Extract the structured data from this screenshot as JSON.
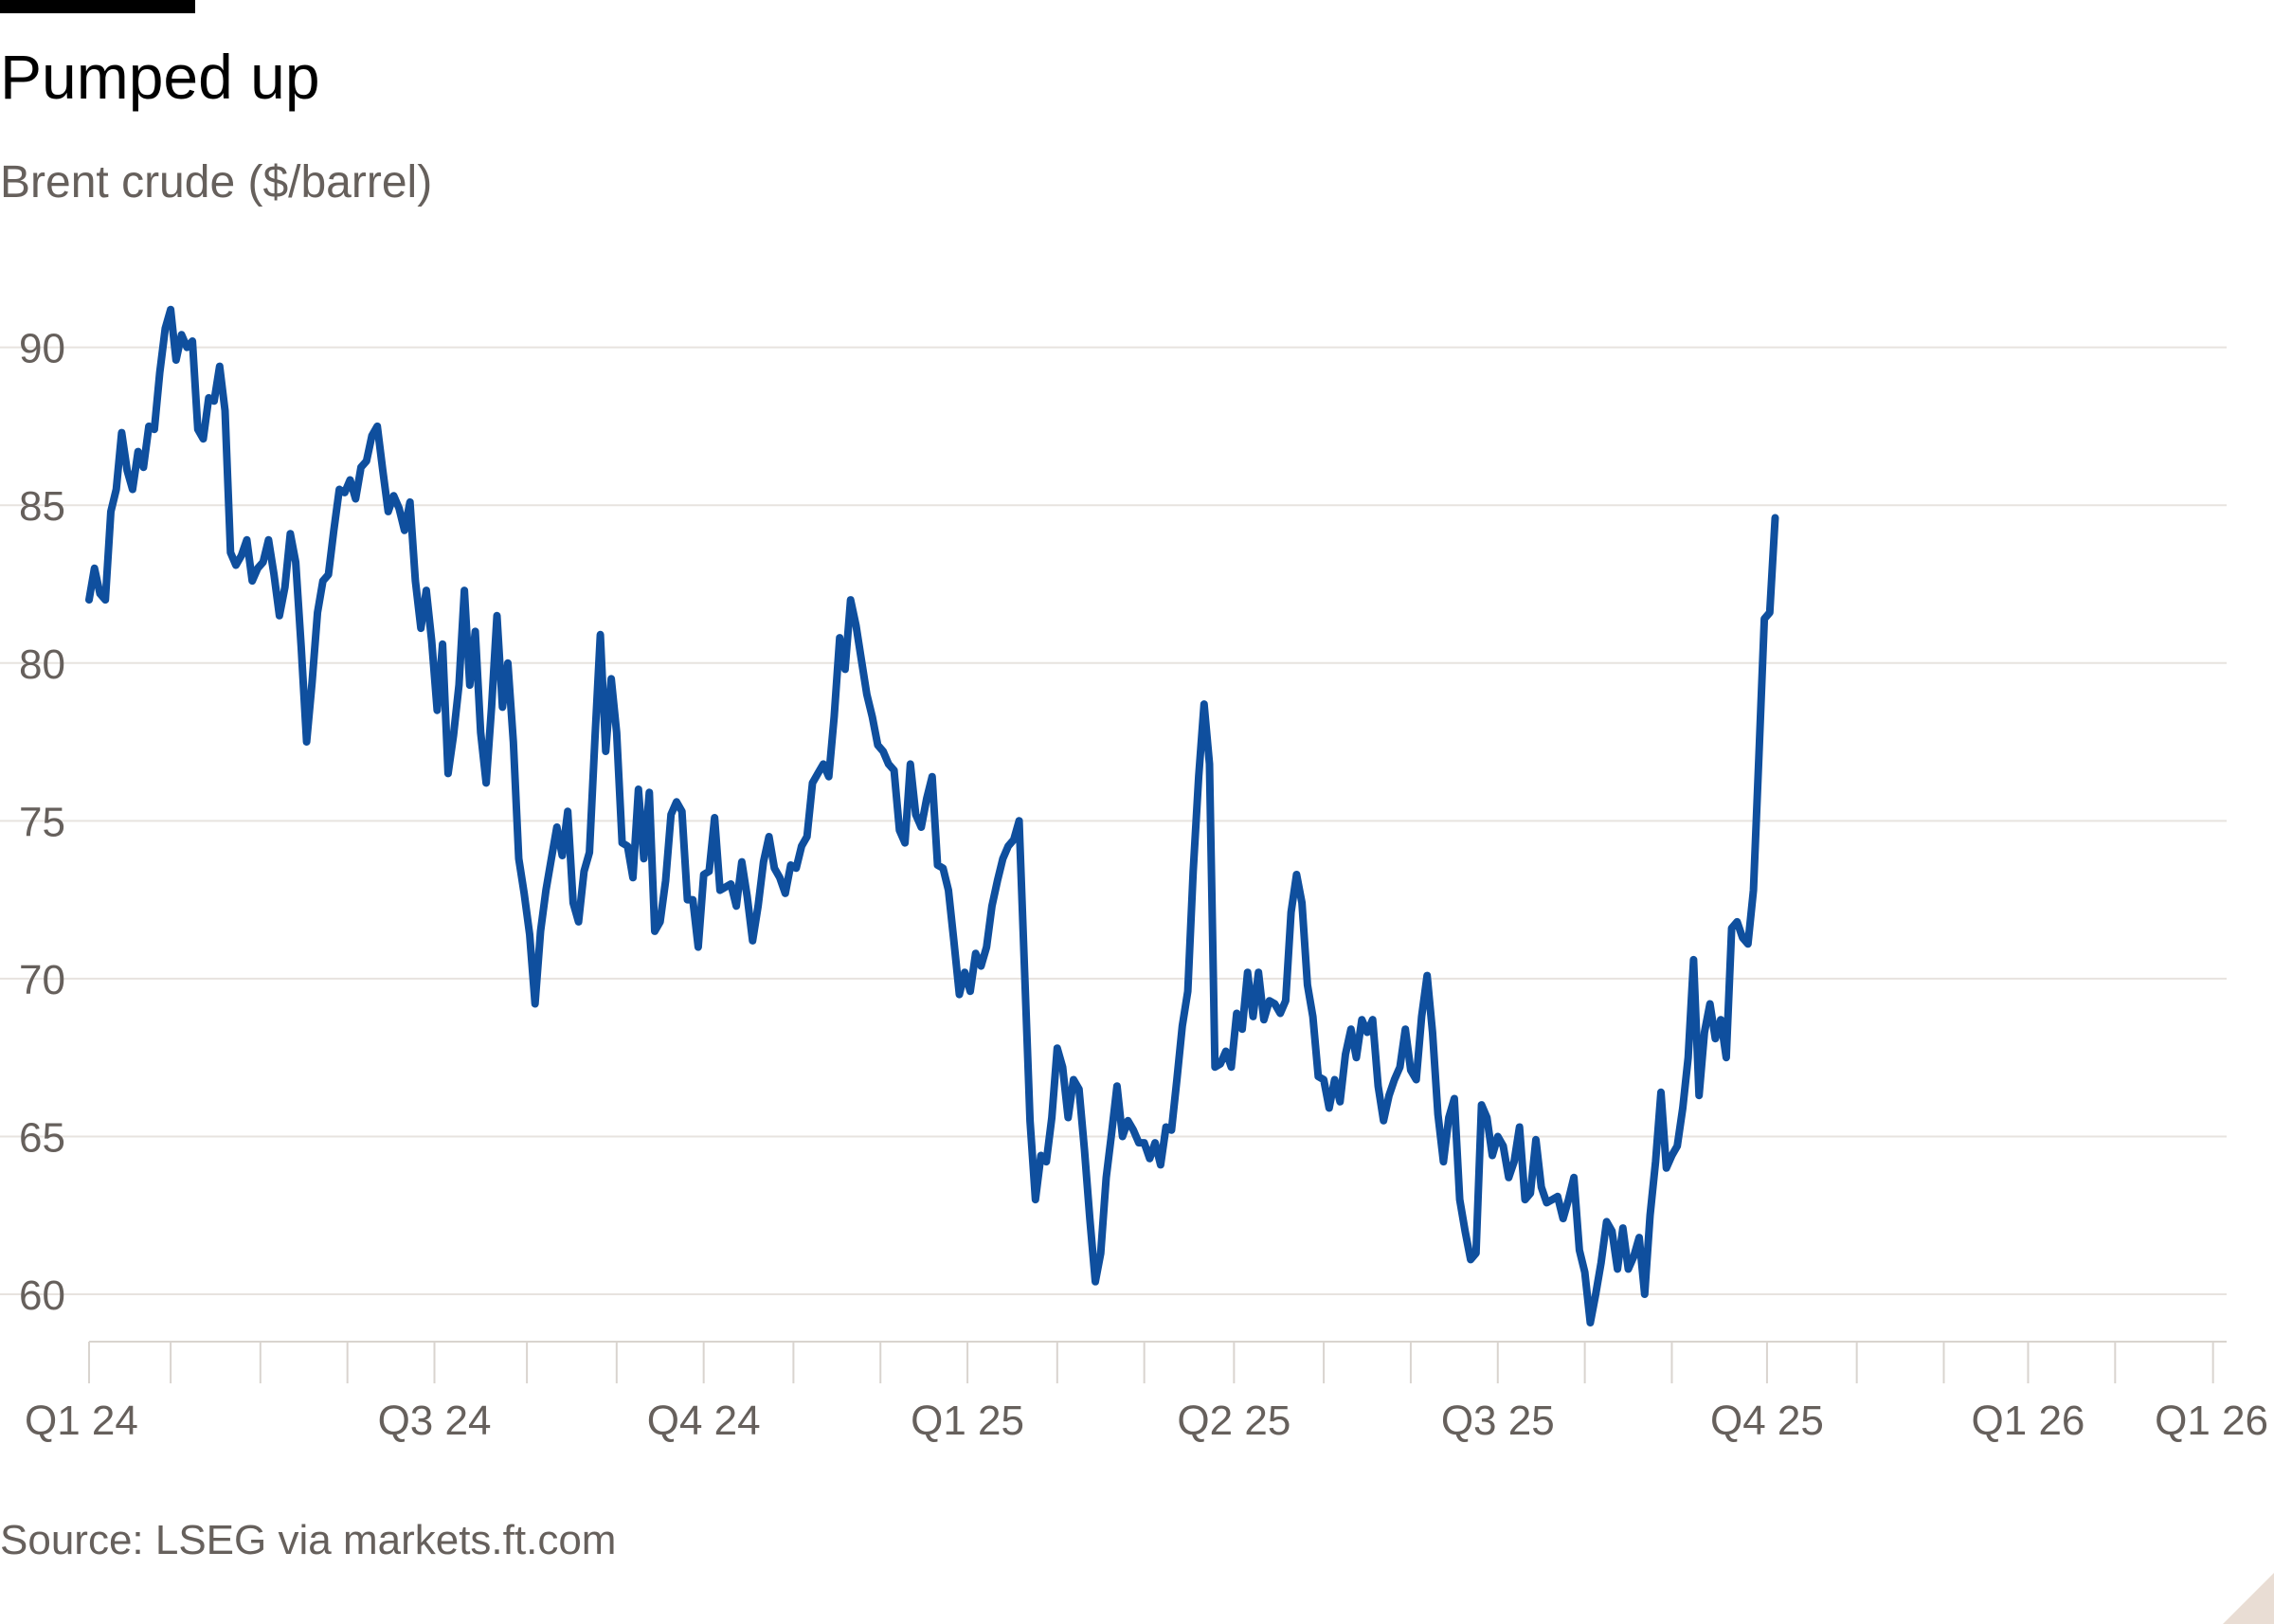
{
  "header": {
    "title": "Pumped up",
    "subtitle": "Brent crude ($/barrel)"
  },
  "footer": {
    "source": "Source: LSEG via markets.ft.com"
  },
  "colors": {
    "line": "#0f4f9e",
    "grid": "#e7e3df",
    "axis": "#d9d4cf",
    "text_muted": "#66605c"
  },
  "chart_data": {
    "type": "line",
    "title": "Pumped up",
    "subtitle": "Brent crude ($/barrel)",
    "xlabel": "",
    "ylabel": "",
    "ylim": [
      58.5,
      92
    ],
    "yticks": [
      60,
      65,
      70,
      75,
      80,
      85,
      90
    ],
    "grid": true,
    "x_domain": [
      0,
      786
    ],
    "x_tick_labels": [
      {
        "x": 0,
        "label": "Q1 24"
      },
      {
        "x": 127,
        "label": "Q3 24"
      },
      {
        "x": 226,
        "label": "Q4 24"
      },
      {
        "x": 323,
        "label": "Q1 25"
      },
      {
        "x": 421,
        "label": "Q2 25"
      },
      {
        "x": 518,
        "label": "Q3 25"
      },
      {
        "x": 617,
        "label": "Q4 25"
      },
      {
        "x": 713,
        "label": "Q1 26"
      },
      {
        "x": 781,
        "label": "Q1 26"
      }
    ],
    "x_minor_ticks": [
      0,
      30,
      63,
      95,
      127,
      161,
      194,
      226,
      259,
      291,
      323,
      356,
      388,
      421,
      454,
      486,
      518,
      550,
      582,
      617,
      650,
      682,
      713,
      745,
      781
    ],
    "series": [
      {
        "name": "Brent crude",
        "points": [
          [
            0,
            82.0
          ],
          [
            2,
            83.0
          ],
          [
            4,
            82.2
          ],
          [
            6,
            82.0
          ],
          [
            8,
            84.8
          ],
          [
            10,
            85.5
          ],
          [
            12,
            87.3
          ],
          [
            14,
            86.1
          ],
          [
            16,
            85.5
          ],
          [
            18,
            86.7
          ],
          [
            20,
            86.2
          ],
          [
            22,
            87.5
          ],
          [
            24,
            87.4
          ],
          [
            26,
            89.2
          ],
          [
            28,
            90.6
          ],
          [
            30,
            91.2
          ],
          [
            32,
            89.6
          ],
          [
            34,
            90.4
          ],
          [
            36,
            90.0
          ],
          [
            38,
            90.2
          ],
          [
            40,
            87.4
          ],
          [
            42,
            87.1
          ],
          [
            44,
            88.4
          ],
          [
            46,
            88.3
          ],
          [
            48,
            89.4
          ],
          [
            50,
            88.0
          ],
          [
            52,
            83.5
          ],
          [
            54,
            83.1
          ],
          [
            56,
            83.4
          ],
          [
            58,
            83.9
          ],
          [
            60,
            82.6
          ],
          [
            62,
            83.0
          ],
          [
            64,
            83.2
          ],
          [
            66,
            83.9
          ],
          [
            68,
            82.8
          ],
          [
            70,
            81.5
          ],
          [
            72,
            82.4
          ],
          [
            74,
            84.1
          ],
          [
            76,
            83.2
          ],
          [
            78,
            80.5
          ],
          [
            80,
            77.5
          ],
          [
            82,
            79.4
          ],
          [
            84,
            81.6
          ],
          [
            86,
            82.6
          ],
          [
            88,
            82.8
          ],
          [
            90,
            84.2
          ],
          [
            92,
            85.5
          ],
          [
            94,
            85.4
          ],
          [
            96,
            85.8
          ],
          [
            98,
            85.2
          ],
          [
            100,
            86.2
          ],
          [
            102,
            86.4
          ],
          [
            104,
            87.2
          ],
          [
            106,
            87.5
          ],
          [
            108,
            86.1
          ],
          [
            110,
            84.8
          ],
          [
            112,
            85.3
          ],
          [
            114,
            84.9
          ],
          [
            116,
            84.2
          ],
          [
            118,
            85.1
          ],
          [
            120,
            82.6
          ],
          [
            122,
            81.1
          ],
          [
            124,
            82.3
          ],
          [
            126,
            80.7
          ],
          [
            128,
            78.5
          ],
          [
            130,
            80.6
          ],
          [
            132,
            76.5
          ],
          [
            134,
            77.7
          ],
          [
            136,
            79.3
          ],
          [
            138,
            82.3
          ],
          [
            140,
            79.3
          ],
          [
            142,
            81.0
          ],
          [
            144,
            77.8
          ],
          [
            146,
            76.2
          ],
          [
            148,
            78.6
          ],
          [
            150,
            81.5
          ],
          [
            152,
            78.6
          ],
          [
            154,
            80.0
          ],
          [
            156,
            77.5
          ],
          [
            158,
            73.8
          ],
          [
            160,
            72.7
          ],
          [
            162,
            71.4
          ],
          [
            164,
            69.2
          ],
          [
            166,
            71.5
          ],
          [
            168,
            72.8
          ],
          [
            170,
            73.8
          ],
          [
            172,
            74.8
          ],
          [
            174,
            73.9
          ],
          [
            176,
            75.3
          ],
          [
            178,
            72.4
          ],
          [
            180,
            71.8
          ],
          [
            182,
            73.4
          ],
          [
            184,
            74.0
          ],
          [
            186,
            77.6
          ],
          [
            188,
            80.9
          ],
          [
            190,
            77.2
          ],
          [
            192,
            79.5
          ],
          [
            194,
            77.8
          ],
          [
            196,
            74.3
          ],
          [
            198,
            74.2
          ],
          [
            200,
            73.2
          ],
          [
            202,
            76.0
          ],
          [
            204,
            73.8
          ],
          [
            206,
            75.9
          ],
          [
            208,
            71.5
          ],
          [
            210,
            71.8
          ],
          [
            212,
            73.1
          ],
          [
            214,
            75.2
          ],
          [
            216,
            75.6
          ],
          [
            218,
            75.3
          ],
          [
            220,
            72.5
          ],
          [
            222,
            72.5
          ],
          [
            224,
            71.0
          ],
          [
            226,
            73.3
          ],
          [
            228,
            73.4
          ],
          [
            230,
            75.1
          ],
          [
            232,
            72.8
          ],
          [
            234,
            72.9
          ],
          [
            236,
            73.0
          ],
          [
            238,
            72.3
          ],
          [
            240,
            73.7
          ],
          [
            242,
            72.6
          ],
          [
            244,
            71.2
          ],
          [
            246,
            72.3
          ],
          [
            248,
            73.7
          ],
          [
            250,
            74.5
          ],
          [
            252,
            73.5
          ],
          [
            254,
            73.2
          ],
          [
            256,
            72.7
          ],
          [
            258,
            73.6
          ],
          [
            260,
            73.5
          ],
          [
            262,
            74.2
          ],
          [
            264,
            74.5
          ],
          [
            266,
            76.2
          ],
          [
            268,
            76.5
          ],
          [
            270,
            76.8
          ],
          [
            272,
            76.4
          ],
          [
            274,
            78.3
          ],
          [
            276,
            80.8
          ],
          [
            278,
            79.8
          ],
          [
            280,
            82.0
          ],
          [
            282,
            81.2
          ],
          [
            284,
            80.1
          ],
          [
            286,
            79.0
          ],
          [
            288,
            78.3
          ],
          [
            290,
            77.4
          ],
          [
            292,
            77.2
          ],
          [
            294,
            76.8
          ],
          [
            296,
            76.6
          ],
          [
            298,
            74.7
          ],
          [
            300,
            74.3
          ],
          [
            302,
            76.8
          ],
          [
            304,
            75.2
          ],
          [
            306,
            74.8
          ],
          [
            308,
            75.7
          ],
          [
            310,
            76.4
          ],
          [
            312,
            73.6
          ],
          [
            314,
            73.5
          ],
          [
            316,
            72.8
          ],
          [
            318,
            71.2
          ],
          [
            320,
            69.5
          ],
          [
            322,
            70.2
          ],
          [
            324,
            69.6
          ],
          [
            326,
            70.8
          ],
          [
            328,
            70.4
          ],
          [
            330,
            71.0
          ],
          [
            332,
            72.3
          ],
          [
            334,
            73.1
          ],
          [
            336,
            73.8
          ],
          [
            338,
            74.2
          ],
          [
            340,
            74.4
          ],
          [
            342,
            75.0
          ],
          [
            344,
            70.2
          ],
          [
            346,
            65.5
          ],
          [
            348,
            63.0
          ],
          [
            350,
            64.4
          ],
          [
            352,
            64.2
          ],
          [
            354,
            65.6
          ],
          [
            356,
            67.8
          ],
          [
            358,
            67.2
          ],
          [
            360,
            65.6
          ],
          [
            362,
            66.8
          ],
          [
            364,
            66.5
          ],
          [
            366,
            64.6
          ],
          [
            368,
            62.4
          ],
          [
            370,
            60.4
          ],
          [
            372,
            61.3
          ],
          [
            374,
            63.7
          ],
          [
            376,
            65.1
          ],
          [
            378,
            66.6
          ],
          [
            380,
            65.0
          ],
          [
            382,
            65.5
          ],
          [
            384,
            65.2
          ],
          [
            386,
            64.8
          ],
          [
            388,
            64.8
          ],
          [
            390,
            64.3
          ],
          [
            392,
            64.8
          ],
          [
            394,
            64.1
          ],
          [
            396,
            65.3
          ],
          [
            398,
            65.2
          ],
          [
            400,
            66.8
          ],
          [
            402,
            68.5
          ],
          [
            404,
            69.6
          ],
          [
            406,
            73.4
          ],
          [
            408,
            76.4
          ],
          [
            410,
            78.7
          ],
          [
            412,
            76.8
          ],
          [
            414,
            67.2
          ],
          [
            416,
            67.3
          ],
          [
            418,
            67.7
          ],
          [
            420,
            67.2
          ],
          [
            422,
            68.9
          ],
          [
            424,
            68.4
          ],
          [
            426,
            70.2
          ],
          [
            428,
            68.8
          ],
          [
            430,
            70.2
          ],
          [
            432,
            68.7
          ],
          [
            434,
            69.3
          ],
          [
            436,
            69.2
          ],
          [
            438,
            68.9
          ],
          [
            440,
            69.3
          ],
          [
            442,
            72.1
          ],
          [
            444,
            73.3
          ],
          [
            446,
            72.4
          ],
          [
            448,
            69.8
          ],
          [
            450,
            68.8
          ],
          [
            452,
            66.9
          ],
          [
            454,
            66.8
          ],
          [
            456,
            65.9
          ],
          [
            458,
            66.8
          ],
          [
            460,
            66.1
          ],
          [
            462,
            67.6
          ],
          [
            464,
            68.4
          ],
          [
            466,
            67.5
          ],
          [
            468,
            68.7
          ],
          [
            470,
            68.3
          ],
          [
            472,
            68.7
          ],
          [
            474,
            66.6
          ],
          [
            476,
            65.5
          ],
          [
            478,
            66.3
          ],
          [
            480,
            66.8
          ],
          [
            482,
            67.2
          ],
          [
            484,
            68.4
          ],
          [
            486,
            67.1
          ],
          [
            488,
            66.8
          ],
          [
            490,
            68.8
          ],
          [
            492,
            70.1
          ],
          [
            494,
            68.3
          ],
          [
            496,
            65.7
          ],
          [
            498,
            64.2
          ],
          [
            500,
            65.6
          ],
          [
            502,
            66.2
          ],
          [
            504,
            63.0
          ],
          [
            506,
            62.0
          ],
          [
            508,
            61.1
          ],
          [
            510,
            61.3
          ],
          [
            512,
            66.0
          ],
          [
            514,
            65.6
          ],
          [
            516,
            64.4
          ],
          [
            518,
            65.0
          ],
          [
            520,
            64.7
          ],
          [
            522,
            63.7
          ],
          [
            524,
            64.2
          ],
          [
            526,
            65.3
          ],
          [
            528,
            63.0
          ],
          [
            530,
            63.2
          ],
          [
            532,
            64.9
          ],
          [
            534,
            63.4
          ],
          [
            536,
            62.9
          ],
          [
            538,
            63.0
          ],
          [
            540,
            63.1
          ],
          [
            542,
            62.4
          ],
          [
            544,
            63.0
          ],
          [
            546,
            63.7
          ],
          [
            548,
            61.4
          ],
          [
            550,
            60.7
          ],
          [
            552,
            59.1
          ],
          [
            554,
            60.0
          ],
          [
            556,
            61.0
          ],
          [
            558,
            62.3
          ],
          [
            560,
            62.0
          ],
          [
            562,
            60.8
          ],
          [
            564,
            62.1
          ],
          [
            566,
            60.8
          ],
          [
            568,
            61.2
          ],
          [
            570,
            61.8
          ],
          [
            572,
            60.0
          ],
          [
            574,
            62.5
          ],
          [
            576,
            64.2
          ],
          [
            578,
            66.4
          ],
          [
            580,
            64.0
          ],
          [
            582,
            64.4
          ],
          [
            584,
            64.7
          ],
          [
            586,
            65.9
          ],
          [
            588,
            67.5
          ],
          [
            590,
            70.6
          ],
          [
            592,
            66.3
          ],
          [
            594,
            68.3
          ],
          [
            596,
            69.2
          ],
          [
            598,
            68.1
          ],
          [
            600,
            68.7
          ],
          [
            602,
            67.5
          ],
          [
            604,
            71.6
          ],
          [
            606,
            71.8
          ],
          [
            608,
            71.3
          ],
          [
            610,
            71.1
          ],
          [
            612,
            72.8
          ],
          [
            614,
            77.0
          ],
          [
            616,
            81.4
          ],
          [
            618,
            81.6
          ],
          [
            620,
            84.6
          ]
        ]
      }
    ]
  }
}
